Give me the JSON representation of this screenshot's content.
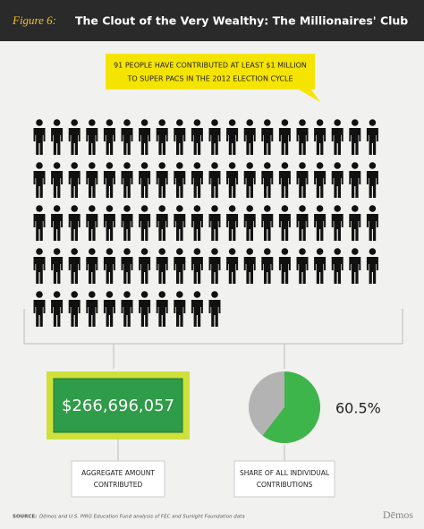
{
  "header": {
    "figure_label": "Figure 6:",
    "title": "The Clout of the Very Wealthy: The Millionaires' Club"
  },
  "callout": {
    "lines": [
      "91 PEOPLE HAVE CONTRIBUTED AT LEAST $1 MILLION",
      "TO SUPER PACS IN THE 2012 ELECTION CYCLE"
    ]
  },
  "pictogram": {
    "count": 91,
    "per_row": 20,
    "color": "#111111"
  },
  "amount": {
    "text": "$266,696,057",
    "label_lines": [
      "AGGREGATE AMOUNT",
      "CONTRIBUTED"
    ]
  },
  "share": {
    "value": 60.5,
    "value_label": "60.5%",
    "color": "#3db54a",
    "rest_color": "#b3b3b3",
    "label_lines": [
      "SHARE OF ALL INDIVIDUAL",
      "CONTRIBUTIONS"
    ]
  },
  "footer": {
    "source_label": "SOURCE:",
    "source": "Dēmos and U.S. PIRG Education Fund analysis of FEC and Sunlight Foundation data",
    "logo": "Dēmos"
  }
}
